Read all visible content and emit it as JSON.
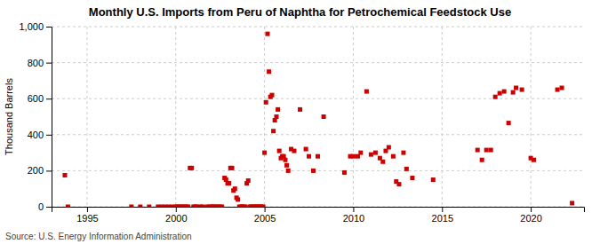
{
  "chart_data": {
    "type": "scatter",
    "title": "Monthly U.S. Imports from Peru of Naphtha for Petrochemical Feedstock Use",
    "ylabel": "Thousand Barrels",
    "annotations": [
      "Source: U.S. Energy Information Administration"
    ],
    "color": "#cc0000",
    "marker": "square",
    "grid": true,
    "xlim": [
      1993,
      2023
    ],
    "ylim": [
      0,
      1000
    ],
    "xticks": [
      1995,
      2000,
      2005,
      2010,
      2015,
      2020
    ],
    "yticks": [
      0,
      200,
      400,
      600,
      800,
      {
        "value": 1000,
        "label": "1,000"
      }
    ],
    "x": [
      1993.75,
      1993.92,
      1997.5,
      1998.0,
      1998.5,
      1999.0,
      1999.2,
      1999.4,
      1999.6,
      1999.8,
      2000.0,
      2000.1,
      2000.2,
      2000.3,
      2000.4,
      2000.5,
      2000.6,
      2000.7,
      2000.8,
      2000.9,
      2001.0,
      2001.1,
      2001.2,
      2001.4,
      2001.5,
      2001.75,
      2001.9,
      2002.0,
      2002.1,
      2002.2,
      2002.3,
      2002.4,
      2002.5,
      2002.6,
      2002.75,
      2002.83,
      2002.92,
      2003.0,
      2003.08,
      2003.17,
      2003.25,
      2003.33,
      2003.42,
      2003.5,
      2003.58,
      2003.67,
      2003.75,
      2003.83,
      2003.92,
      2004.0,
      2004.08,
      2004.17,
      2004.25,
      2004.33,
      2004.42,
      2004.5,
      2004.58,
      2004.67,
      2004.75,
      2004.83,
      2004.92,
      2005.0,
      2005.08,
      2005.17,
      2005.25,
      2005.33,
      2005.42,
      2005.5,
      2005.58,
      2005.67,
      2005.75,
      2005.83,
      2005.92,
      2006.0,
      2006.08,
      2006.17,
      2006.25,
      2006.33,
      2006.5,
      2006.67,
      2007.0,
      2007.33,
      2007.5,
      2007.75,
      2008.0,
      2008.33,
      2009.5,
      2009.83,
      2010.0,
      2010.25,
      2010.42,
      2010.75,
      2011.0,
      2011.25,
      2011.5,
      2011.67,
      2011.83,
      2012.0,
      2012.25,
      2012.42,
      2012.58,
      2012.83,
      2013.0,
      2013.33,
      2014.5,
      2017.0,
      2017.25,
      2017.5,
      2017.75,
      2018.0,
      2018.25,
      2018.5,
      2018.75,
      2019.0,
      2019.17,
      2019.5,
      2020.0,
      2020.17,
      2021.5,
      2021.75,
      2022.33
    ],
    "values": [
      175,
      0,
      0,
      0,
      0,
      0,
      0,
      0,
      0,
      0,
      0,
      0,
      0,
      0,
      0,
      0,
      0,
      0,
      215,
      215,
      0,
      0,
      0,
      0,
      0,
      0,
      0,
      0,
      0,
      0,
      0,
      0,
      0,
      0,
      160,
      150,
      130,
      130,
      215,
      215,
      90,
      100,
      50,
      40,
      0,
      0,
      0,
      0,
      0,
      130,
      145,
      0,
      0,
      0,
      0,
      0,
      0,
      0,
      0,
      0,
      0,
      300,
      580,
      960,
      750,
      610,
      620,
      420,
      480,
      500,
      540,
      310,
      270,
      280,
      280,
      260,
      230,
      200,
      320,
      310,
      540,
      320,
      280,
      200,
      280,
      500,
      190,
      280,
      280,
      280,
      300,
      640,
      290,
      300,
      270,
      250,
      310,
      330,
      280,
      140,
      125,
      300,
      210,
      160,
      150,
      315,
      260,
      315,
      315,
      610,
      630,
      640,
      465,
      635,
      660,
      650,
      270,
      260,
      650,
      660,
      20
    ]
  }
}
